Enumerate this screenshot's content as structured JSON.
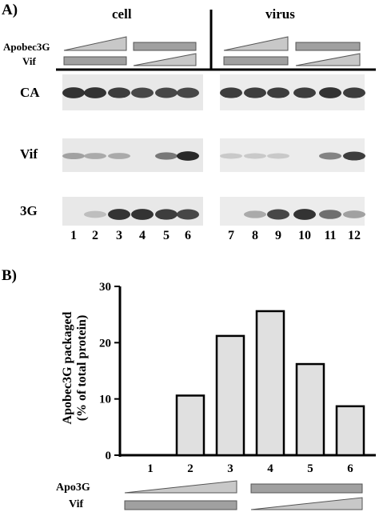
{
  "panelA": {
    "label": "A)",
    "headers": {
      "left": "cell",
      "right": "virus"
    },
    "controls": {
      "row1": "Apobec3G",
      "row2": "Vif"
    },
    "rows": [
      "CA",
      "Vif",
      "3G"
    ],
    "lanes": [
      "1",
      "2",
      "3",
      "4",
      "5",
      "6",
      "7",
      "8",
      "9",
      "10",
      "11",
      "12"
    ],
    "band_intensity": {
      "CA": [
        0.9,
        0.9,
        0.85,
        0.8,
        0.8,
        0.8,
        0.85,
        0.85,
        0.85,
        0.85,
        0.9,
        0.85
      ],
      "Vif": [
        0.35,
        0.3,
        0.3,
        0.0,
        0.55,
        0.95,
        0.15,
        0.15,
        0.15,
        0.0,
        0.5,
        0.85
      ],
      "3G": [
        0.0,
        0.2,
        0.9,
        0.9,
        0.85,
        0.8,
        0.0,
        0.3,
        0.8,
        0.9,
        0.6,
        0.35
      ]
    }
  },
  "panelB": {
    "label": "B)",
    "controls": {
      "row1": "Apo3G",
      "row2": "Vif"
    }
  },
  "chart_data": {
    "type": "bar",
    "categories": [
      "1",
      "2",
      "3",
      "4",
      "5",
      "6"
    ],
    "values": [
      0,
      10.6,
      21.2,
      25.6,
      16.2,
      8.7
    ],
    "title": "",
    "xlabel": "",
    "ylabel_line1": "Apobec3G packaged",
    "ylabel_line2": "(% of total protein)",
    "ylim": [
      0,
      30
    ],
    "yticks": [
      "0",
      "10",
      "20",
      "30"
    ],
    "grid": false,
    "bar_color": "#e0e0e0"
  }
}
